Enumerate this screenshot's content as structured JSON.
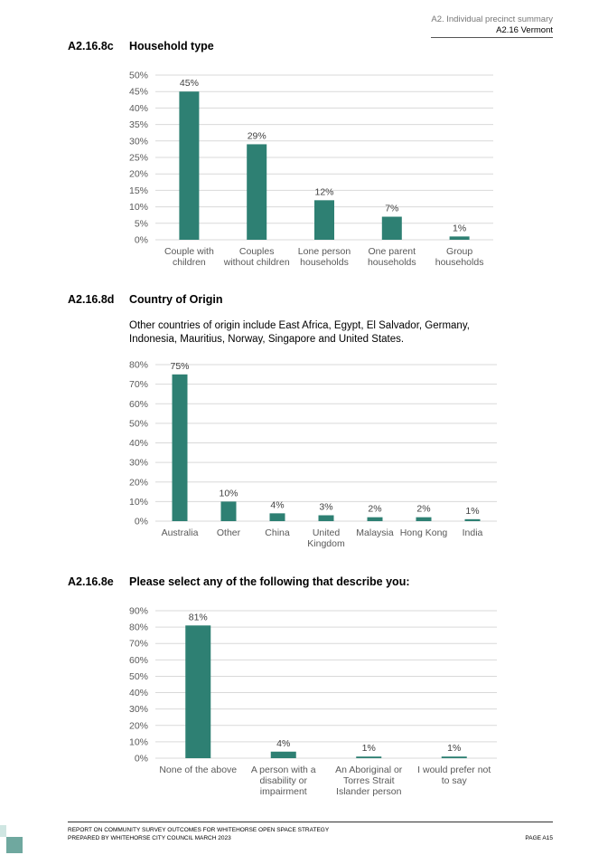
{
  "header": {
    "line1": "A2. Individual precinct summary",
    "line2": "A2.16 Vermont"
  },
  "sections": [
    {
      "num": "A2.16.8c",
      "title": "Household type"
    },
    {
      "num": "A2.16.8d",
      "title": "Country of Origin"
    },
    {
      "num": "A2.16.8e",
      "title": "Please select any of the following that describe you:"
    }
  ],
  "note": "Other countries of origin include East Africa, Egypt, El Salvador, Germany, Indonesia, Mauritius, Norway, Singapore and United States.",
  "colors": {
    "bar": "#2e8073",
    "grid": "#d9d9d9",
    "axis_text": "#595959"
  },
  "chart_data": [
    {
      "type": "bar",
      "title": "Household type",
      "categories": [
        "Couple with children",
        "Couples without children",
        "Lone person households",
        "One parent households",
        "Group households"
      ],
      "category_lines": [
        [
          "Couple with",
          "children"
        ],
        [
          "Couples",
          "without children"
        ],
        [
          "Lone person",
          "households"
        ],
        [
          "One parent",
          "households"
        ],
        [
          "Group",
          "households"
        ]
      ],
      "values": [
        45,
        29,
        12,
        7,
        1
      ],
      "data_labels": [
        "45%",
        "29%",
        "12%",
        "7%",
        "1%"
      ],
      "ylim": [
        0,
        50
      ],
      "yticks": [
        0,
        5,
        10,
        15,
        20,
        25,
        30,
        35,
        40,
        45,
        50
      ],
      "ytick_labels": [
        "0%",
        "5%",
        "10%",
        "15%",
        "20%",
        "25%",
        "30%",
        "35%",
        "40%",
        "45%",
        "50%"
      ],
      "grid": true
    },
    {
      "type": "bar",
      "title": "Country of Origin",
      "categories": [
        "Australia",
        "Other",
        "China",
        "United Kingdom",
        "Malaysia",
        "Hong Kong",
        "India"
      ],
      "category_lines": [
        [
          "Australia"
        ],
        [
          "Other"
        ],
        [
          "China"
        ],
        [
          "United",
          "Kingdom"
        ],
        [
          "Malaysia"
        ],
        [
          "Hong Kong"
        ],
        [
          "India"
        ]
      ],
      "values": [
        75,
        10,
        4,
        3,
        2,
        2,
        1
      ],
      "data_labels": [
        "75%",
        "10%",
        "4%",
        "3%",
        "2%",
        "2%",
        "1%"
      ],
      "ylim": [
        0,
        80
      ],
      "yticks": [
        0,
        10,
        20,
        30,
        40,
        50,
        60,
        70,
        80
      ],
      "ytick_labels": [
        "0%",
        "10%",
        "20%",
        "30%",
        "40%",
        "50%",
        "60%",
        "70%",
        "80%"
      ],
      "grid": true
    },
    {
      "type": "bar",
      "title": "Please select any of the following that describe you:",
      "categories": [
        "None of the above",
        "A person with a disability or impairment",
        "An Aboriginal or Torres Strait Islander person",
        "I would prefer not to say"
      ],
      "category_lines": [
        [
          "None of the above"
        ],
        [
          "A person with a",
          "disability or",
          "impairment"
        ],
        [
          "An Aboriginal or",
          "Torres Strait",
          "Islander person"
        ],
        [
          "I would prefer not",
          "to say"
        ]
      ],
      "values": [
        81,
        4,
        1,
        1
      ],
      "data_labels": [
        "81%",
        "4%",
        "1%",
        "1%"
      ],
      "ylim": [
        0,
        90
      ],
      "yticks": [
        0,
        10,
        20,
        30,
        40,
        50,
        60,
        70,
        80,
        90
      ],
      "ytick_labels": [
        "0%",
        "10%",
        "20%",
        "30%",
        "40%",
        "50%",
        "60%",
        "70%",
        "80%",
        "90%"
      ],
      "grid": true
    }
  ],
  "footer": {
    "line1": "REPORT ON COMMUNITY SURVEY OUTCOMES FOR WHITEHORSE OPEN SPACE STRATEGY",
    "line2": "PREPARED BY WHITEHORSE CITY COUNCIL MARCH 2023",
    "page": "PAGE A15"
  }
}
